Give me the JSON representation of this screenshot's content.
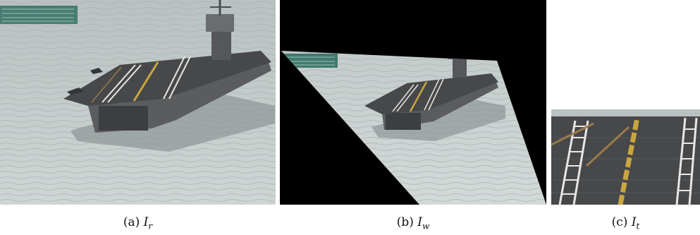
{
  "figure": {
    "panels": [
      {
        "label": "(a)",
        "symbol": "I",
        "subscript": "r"
      },
      {
        "label": "(b)",
        "symbol": "I",
        "subscript": "w"
      },
      {
        "label": "(c)",
        "symbol": "I",
        "subscript": "t"
      }
    ]
  },
  "colors": {
    "sea": "#c7cecd",
    "deck": "#46484a",
    "hull": "#5a5c5d",
    "yellow_line": "#c9a640",
    "hud": "#2e6a5e",
    "black": "#000000"
  }
}
